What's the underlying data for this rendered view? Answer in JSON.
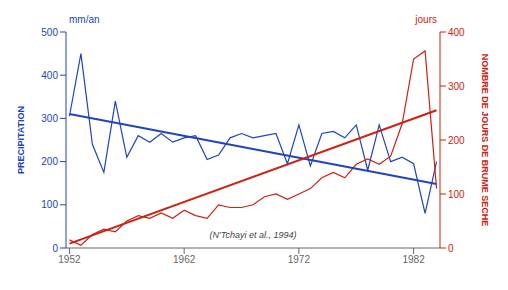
{
  "chart_data": {
    "type": "line",
    "x": [
      1952,
      1953,
      1954,
      1955,
      1956,
      1957,
      1958,
      1959,
      1960,
      1961,
      1962,
      1963,
      1964,
      1965,
      1966,
      1967,
      1968,
      1969,
      1970,
      1971,
      1972,
      1973,
      1974,
      1975,
      1976,
      1977,
      1978,
      1979,
      1980,
      1981,
      1982,
      1983,
      1984
    ],
    "xlim": [
      1951.7,
      1984.3
    ],
    "xticks": [
      1952,
      1962,
      1972,
      1982
    ],
    "ylim": [
      0,
      500
    ],
    "yticks": [
      0,
      100,
      200,
      300,
      400,
      500
    ],
    "y2lim": [
      0,
      400
    ],
    "y2ticks": [
      0,
      100,
      200,
      300,
      400
    ],
    "ylabel": "PRECIPITATION",
    "y2label": "NOMBRE DE JOURS DE BRUME SECHE",
    "y_unit": "mm/an",
    "y2_unit": "jours",
    "annotation": "(N'Tchayi et al., 1994)",
    "grid": false,
    "series": [
      {
        "color": "#2244bb",
        "values": [
          305,
          450,
          240,
          175,
          340,
          210,
          260,
          245,
          265,
          245,
          255,
          260,
          205,
          215,
          255,
          265,
          255,
          260,
          265,
          195,
          285,
          190,
          265,
          270,
          255,
          285,
          180,
          285,
          200,
          210,
          195,
          80,
          200
        ],
        "trend": [
          310,
          148
        ]
      },
      {
        "color": "#cc2211",
        "axis": "y2",
        "values": [
          15,
          5,
          25,
          35,
          30,
          50,
          60,
          55,
          65,
          55,
          70,
          60,
          55,
          80,
          75,
          75,
          80,
          95,
          100,
          90,
          100,
          110,
          130,
          140,
          130,
          155,
          165,
          155,
          170,
          230,
          350,
          365,
          110
        ],
        "trend": [
          8,
          255
        ]
      }
    ]
  }
}
